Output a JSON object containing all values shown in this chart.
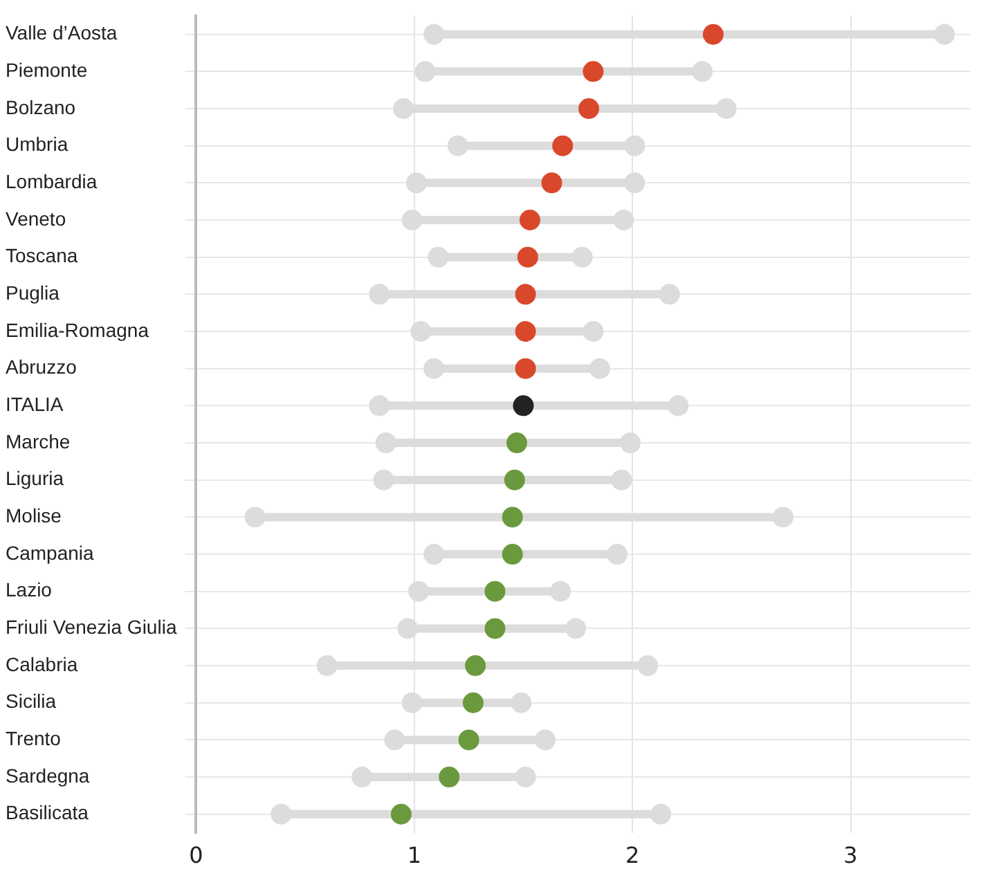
{
  "chart_data": {
    "type": "scatter",
    "orientation": "horizontal",
    "categories": [
      "Valle d’Aosta",
      "Piemonte",
      "Bolzano",
      "Umbria",
      "Lombardia",
      "Veneto",
      "Toscana",
      "Puglia",
      "Emilia-Romagna",
      "Abruzzo",
      "ITALIA",
      "Marche",
      "Liguria",
      "Molise",
      "Campania",
      "Lazio",
      "Friuli Venezia Giulia",
      "Calabria",
      "Sicilia",
      "Trento",
      "Sardegna",
      "Basilicata"
    ],
    "series": [
      {
        "color": "#dcdcdc",
        "values": [
          1.09,
          1.05,
          0.95,
          1.2,
          1.01,
          0.99,
          1.11,
          0.84,
          1.03,
          1.09,
          0.84,
          0.87,
          0.86,
          0.27,
          1.09,
          1.02,
          0.97,
          0.6,
          0.99,
          0.91,
          0.76,
          0.39
        ]
      },
      {
        "color": "#dcdcdc",
        "values": [
          3.43,
          2.32,
          2.43,
          2.01,
          2.01,
          1.96,
          1.77,
          2.17,
          1.82,
          1.85,
          2.21,
          1.99,
          1.95,
          2.69,
          1.93,
          1.67,
          1.74,
          2.07,
          1.49,
          1.6,
          1.51,
          2.13
        ]
      },
      {
        "values": [
          2.37,
          1.82,
          1.8,
          1.68,
          1.63,
          1.53,
          1.52,
          1.51,
          1.51,
          1.51,
          1.5,
          1.47,
          1.46,
          1.45,
          1.45,
          1.37,
          1.37,
          1.28,
          1.27,
          1.25,
          1.16,
          0.94
        ],
        "colors": [
          "#d9482b",
          "#d9482b",
          "#d9482b",
          "#d9482b",
          "#d9482b",
          "#d9482b",
          "#d9482b",
          "#d9482b",
          "#d9482b",
          "#d9482b",
          "#222222",
          "#6a9a3d",
          "#6a9a3d",
          "#6a9a3d",
          "#6a9a3d",
          "#6a9a3d",
          "#6a9a3d",
          "#6a9a3d",
          "#6a9a3d",
          "#6a9a3d",
          "#6a9a3d",
          "#6a9a3d"
        ]
      }
    ],
    "xlim": [
      0,
      3.55
    ],
    "xticks": [
      0,
      1,
      2,
      3
    ],
    "grid": true,
    "marker": "circle",
    "legend": false
  }
}
